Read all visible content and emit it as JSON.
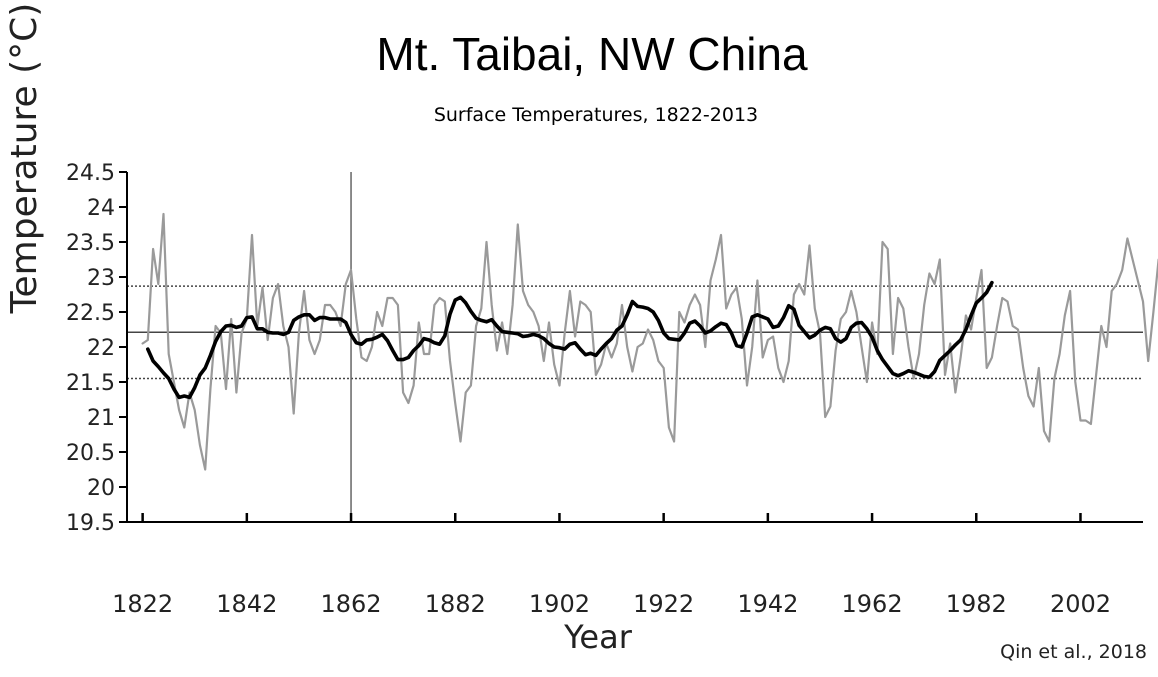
{
  "chart_data": {
    "type": "line",
    "title": "Mt. Taibai, NW China",
    "subtitle": "Surface Temperatures, 1822-2013",
    "xlabel": "Year",
    "ylabel": "Temperature (°C)",
    "source": "Qin et al., 2018",
    "xlim": [
      1819,
      2014
    ],
    "ylim": [
      19.5,
      24.5
    ],
    "x_ticks": [
      1822,
      1842,
      1862,
      1882,
      1902,
      1922,
      1942,
      1962,
      1982,
      2002
    ],
    "y_ticks": [
      19.5,
      20,
      20.5,
      21,
      21.5,
      22,
      22.5,
      23,
      23.5,
      24,
      24.5
    ],
    "y_tick_labels": [
      "19.5",
      "20",
      "20.5",
      "21",
      "21.5",
      "22",
      "22.5",
      "23",
      "23.5",
      "24",
      "24.5"
    ],
    "reference_lines": [
      {
        "y": 22.87,
        "style": "dotted"
      },
      {
        "y": 22.21,
        "style": "solid"
      },
      {
        "y": 21.55,
        "style": "dotted"
      }
    ],
    "vertical_marker": {
      "x": 1862
    },
    "colors": {
      "annual": "#9a9a9a",
      "smoothed": "#000000",
      "reference": "#444444",
      "axis": "#000000"
    },
    "series": [
      {
        "style": "annual",
        "x_start": 1822,
        "values": [
          22.05,
          22.1,
          23.4,
          22.9,
          23.9,
          21.9,
          21.5,
          21.1,
          20.85,
          21.35,
          21.1,
          20.6,
          20.25,
          21.4,
          22.3,
          22.2,
          21.4,
          22.4,
          21.35,
          22.2,
          22.4,
          23.6,
          22.3,
          22.85,
          22.1,
          22.7,
          22.9,
          22.3,
          22.0,
          21.05,
          22.2,
          22.8,
          22.1,
          21.9,
          22.1,
          22.6,
          22.6,
          22.5,
          22.3,
          22.9,
          23.1,
          22.4,
          21.85,
          21.8,
          22.0,
          22.5,
          22.3,
          22.7,
          22.7,
          22.6,
          21.35,
          21.2,
          21.45,
          22.35,
          21.9,
          21.9,
          22.6,
          22.7,
          22.65,
          21.8,
          21.2,
          20.65,
          21.35,
          21.45,
          22.3,
          22.55,
          23.5,
          22.6,
          21.95,
          22.35,
          21.9,
          22.6,
          23.75,
          22.8,
          22.6,
          22.5,
          22.3,
          21.8,
          22.35,
          21.75,
          21.45,
          22.2,
          22.8,
          22.15,
          22.65,
          22.6,
          22.5,
          21.6,
          21.75,
          22.05,
          21.85,
          22.05,
          22.6,
          22.0,
          21.65,
          22.0,
          22.05,
          22.25,
          22.1,
          21.8,
          21.7,
          20.85,
          20.65,
          22.5,
          22.35,
          22.6,
          22.75,
          22.6,
          22.0,
          22.95,
          23.25,
          23.6,
          22.55,
          22.75,
          22.85,
          22.4,
          21.45,
          22.0,
          22.95,
          21.85,
          22.1,
          22.15,
          21.7,
          21.5,
          21.8,
          22.75,
          22.9,
          22.75,
          23.45,
          22.55,
          22.2,
          21.0,
          21.15,
          21.95,
          22.4,
          22.5,
          22.8,
          22.5,
          22.0,
          21.5,
          22.35,
          21.9,
          23.5,
          23.4,
          21.9,
          22.7,
          22.55,
          22.0,
          21.55,
          21.9,
          22.6,
          23.05,
          22.9,
          23.25,
          21.6,
          22.05,
          21.35,
          21.85,
          22.45,
          22.25,
          22.7,
          23.1,
          21.7,
          21.85,
          22.3,
          22.7,
          22.65,
          22.3,
          22.25,
          21.7,
          21.3,
          21.15,
          21.7,
          20.8,
          20.65,
          21.55,
          21.9,
          22.45,
          22.8,
          21.5,
          20.95,
          20.95,
          20.9,
          21.6,
          22.3,
          22.0,
          22.8,
          22.9,
          23.1,
          23.55,
          23.25,
          22.95,
          22.65,
          21.8,
          22.5,
          23.25,
          23.35
        ]
      },
      {
        "style": "smoothed",
        "x_start": 1823,
        "values": [
          21.97,
          21.8,
          21.72,
          21.63,
          21.55,
          21.4,
          21.28,
          21.3,
          21.28,
          21.42,
          21.6,
          21.7,
          21.88,
          22.08,
          22.22,
          22.3,
          22.31,
          22.28,
          22.3,
          22.42,
          22.43,
          22.26,
          22.26,
          22.21,
          22.2,
          22.2,
          22.18,
          22.21,
          22.38,
          22.43,
          22.46,
          22.46,
          22.38,
          22.42,
          22.42,
          22.4,
          22.4,
          22.4,
          22.35,
          22.18,
          22.06,
          22.04,
          22.1,
          22.11,
          22.14,
          22.18,
          22.09,
          21.95,
          21.82,
          21.82,
          21.85,
          21.95,
          22.02,
          22.12,
          22.1,
          22.06,
          22.04,
          22.16,
          22.47,
          22.67,
          22.71,
          22.63,
          22.51,
          22.41,
          22.38,
          22.36,
          22.39,
          22.3,
          22.22,
          22.21,
          22.2,
          22.19,
          22.15,
          22.16,
          22.18,
          22.16,
          22.12,
          22.05,
          22.0,
          21.99,
          21.97,
          22.04,
          22.06,
          21.97,
          21.89,
          21.91,
          21.88,
          21.97,
          22.05,
          22.12,
          22.24,
          22.3,
          22.46,
          22.65,
          22.58,
          22.57,
          22.55,
          22.5,
          22.38,
          22.2,
          22.12,
          22.11,
          22.1,
          22.2,
          22.34,
          22.37,
          22.3,
          22.2,
          22.23,
          22.29,
          22.34,
          22.32,
          22.2,
          22.02,
          22.0,
          22.2,
          22.43,
          22.46,
          22.43,
          22.4,
          22.28,
          22.3,
          22.42,
          22.59,
          22.54,
          22.31,
          22.22,
          22.13,
          22.17,
          22.24,
          22.28,
          22.26,
          22.12,
          22.07,
          22.12,
          22.28,
          22.34,
          22.35,
          22.26,
          22.14,
          21.95,
          21.82,
          21.72,
          21.62,
          21.59,
          21.62,
          21.66,
          21.64,
          21.61,
          21.58,
          21.57,
          21.65,
          21.81,
          21.88,
          21.95,
          22.03,
          22.1,
          22.25,
          22.45,
          22.63,
          22.7,
          22.78,
          22.92
        ]
      }
    ]
  }
}
